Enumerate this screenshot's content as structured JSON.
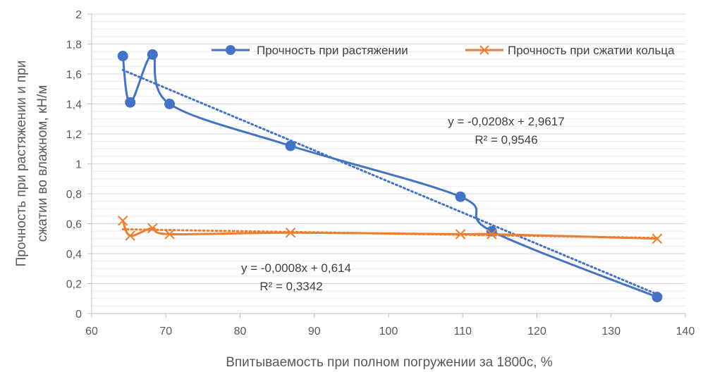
{
  "chart_data": {
    "type": "line",
    "title": "",
    "xlabel": "Впитываемость при полном погружении за 1800с, %",
    "ylabel_line1": "Прочность при растяжении и при",
    "ylabel_line2": "сжатии во влажном, кН/м",
    "xlim": [
      60,
      140
    ],
    "ylim": [
      0,
      2
    ],
    "x_ticks": [
      60,
      70,
      80,
      90,
      100,
      110,
      120,
      130,
      140
    ],
    "x_tick_labels": [
      "60",
      "70",
      "80",
      "90",
      "100",
      "110",
      "120",
      "130",
      "140"
    ],
    "y_ticks": [
      0,
      0.2,
      0.4,
      0.6,
      0.8,
      1,
      1.2,
      1.4,
      1.6,
      1.8,
      2
    ],
    "y_tick_labels": [
      "0",
      "0,2",
      "0,4",
      "0,6",
      "0,8",
      "1",
      "1,2",
      "1,4",
      "1,6",
      "1,8",
      "2"
    ],
    "legend_position": "top-right",
    "series": [
      {
        "name": "Прочность при растяжении",
        "marker": "circle",
        "color": "#4472c4",
        "x": [
          64.2,
          65.2,
          68.2,
          70.5,
          86.8,
          109.7,
          113.9,
          136.2
        ],
        "y": [
          1.72,
          1.41,
          1.73,
          1.4,
          1.12,
          0.78,
          0.55,
          0.11
        ],
        "trendline": {
          "type": "linear",
          "slope": -0.0208,
          "intercept": 2.9617,
          "x_range": [
            64.2,
            136.2
          ],
          "equation": "y = -0,0208x + 2,9617",
          "r2": "R² = 0,9546"
        }
      },
      {
        "name": "Прочность при сжатии кольца",
        "marker": "x",
        "color": "#ed7d31",
        "x": [
          64.2,
          65.2,
          68.2,
          70.5,
          86.8,
          109.7,
          113.9,
          136.2
        ],
        "y": [
          0.62,
          0.52,
          0.57,
          0.53,
          0.54,
          0.53,
          0.53,
          0.5
        ],
        "trendline": {
          "type": "linear",
          "slope": -0.0008,
          "intercept": 0.614,
          "x_range": [
            64.2,
            136.2
          ],
          "equation": "y = -0,0008x + 0,614",
          "r2": "R² = 0,3342"
        }
      }
    ]
  }
}
